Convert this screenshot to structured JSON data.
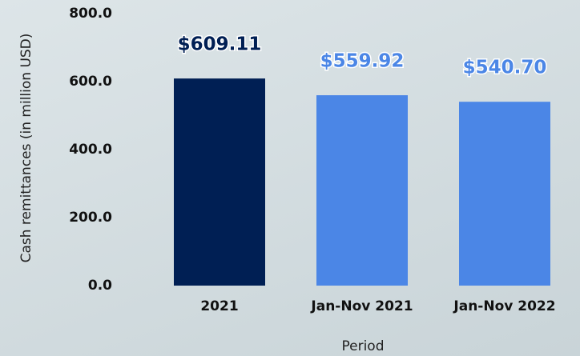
{
  "chart_data": {
    "type": "bar",
    "categories": [
      "2021",
      "Jan-Nov 2021",
      "Jan-Nov 2022"
    ],
    "values": [
      609.11,
      559.92,
      540.7
    ],
    "value_labels": [
      "$609.11",
      "$559.92",
      "$540.70"
    ],
    "colors": [
      "#001f54",
      "#4b86e6",
      "#4b86e6"
    ],
    "value_label_colors": [
      "#001f54",
      "#4b86e6",
      "#4b86e6"
    ],
    "ylabel": "Cash remittances (in million USD)",
    "xlabel": "Period",
    "ylim": [
      0,
      800
    ],
    "yticks": [
      {
        "value": 0,
        "label": "0.0"
      },
      {
        "value": 200,
        "label": "200.0"
      },
      {
        "value": 400,
        "label": "400.0"
      },
      {
        "value": 600,
        "label": "600.0"
      },
      {
        "value": 800,
        "label": "800.0"
      }
    ],
    "grid": false
  }
}
